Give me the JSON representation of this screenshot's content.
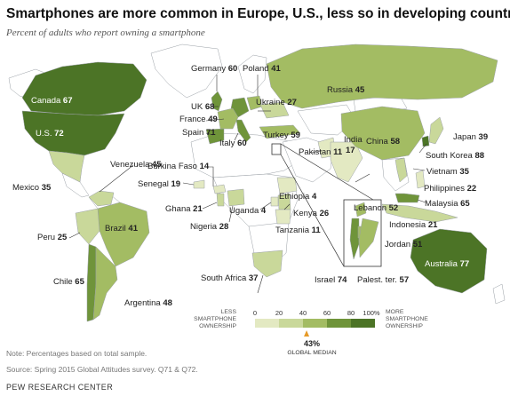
{
  "title": "Smartphones are more common in Europe, U.S., less so in developing countries",
  "subtitle": "Percent of adults who report owning a smartphone",
  "colors": {
    "c0": "#e3e9c2",
    "c1": "#c9d89a",
    "c2": "#a3bc63",
    "c3": "#6f943a",
    "c4": "#4c7426",
    "nodata": "#ffffff",
    "border": "#9aa0a6",
    "median_marker": "#e69a28"
  },
  "countries": [
    {
      "name": "Canada",
      "value": "67"
    },
    {
      "name": "U.S.",
      "value": "72"
    },
    {
      "name": "Mexico",
      "value": "35"
    },
    {
      "name": "Venezuela",
      "value": "45"
    },
    {
      "name": "Brazil",
      "value": "41"
    },
    {
      "name": "Peru",
      "value": "25"
    },
    {
      "name": "Chile",
      "value": "65"
    },
    {
      "name": "Argentina",
      "value": "48"
    },
    {
      "name": "UK",
      "value": "68"
    },
    {
      "name": "Germany",
      "value": "60"
    },
    {
      "name": "Poland",
      "value": "41"
    },
    {
      "name": "France",
      "value": "49"
    },
    {
      "name": "Spain",
      "value": "71"
    },
    {
      "name": "Italy",
      "value": "60"
    },
    {
      "name": "Ukraine",
      "value": "27"
    },
    {
      "name": "Russia",
      "value": "45"
    },
    {
      "name": "Turkey",
      "value": "59"
    },
    {
      "name": "Burkina Faso",
      "value": "14"
    },
    {
      "name": "Senegal",
      "value": "19"
    },
    {
      "name": "Ghana",
      "value": "21"
    },
    {
      "name": "Nigeria",
      "value": "28"
    },
    {
      "name": "Uganda",
      "value": "4"
    },
    {
      "name": "Ethiopia",
      "value": "4"
    },
    {
      "name": "Kenya",
      "value": "26"
    },
    {
      "name": "Tanzania",
      "value": "11"
    },
    {
      "name": "South Africa",
      "value": "37"
    },
    {
      "name": "Pakistan",
      "value": "11"
    },
    {
      "name": "India",
      "value": "17"
    },
    {
      "name": "China",
      "value": "58"
    },
    {
      "name": "Japan",
      "value": "39"
    },
    {
      "name": "South Korea",
      "value": "88"
    },
    {
      "name": "Vietnam",
      "value": "35"
    },
    {
      "name": "Philippines",
      "value": "22"
    },
    {
      "name": "Malaysia",
      "value": "65"
    },
    {
      "name": "Indonesia",
      "value": "21"
    },
    {
      "name": "Australia",
      "value": "77"
    },
    {
      "name": "Lebanon",
      "value": "52"
    },
    {
      "name": "Jordan",
      "value": "51"
    },
    {
      "name": "Israel",
      "value": "74"
    },
    {
      "name": "Palest. ter.",
      "value": "57"
    }
  ],
  "legend": {
    "low_label_1": "LESS",
    "low_label_2": "SMARTPHONE",
    "low_label_3": "OWNERSHIP",
    "high_label_1": "MORE",
    "high_label_2": "SMARTPHONE",
    "high_label_3": "OWNERSHIP",
    "ticks": [
      "0",
      "20",
      "40",
      "60",
      "80",
      "100%"
    ],
    "median_value": "43%",
    "median_label": "GLOBAL MEDIAN",
    "median_fraction": 0.43
  },
  "footer": {
    "note": "Note: Percentages based on total sample.",
    "source": "Source: Spring 2015 Global Attitudes survey. Q71 & Q72.",
    "org": "PEW RESEARCH CENTER"
  }
}
